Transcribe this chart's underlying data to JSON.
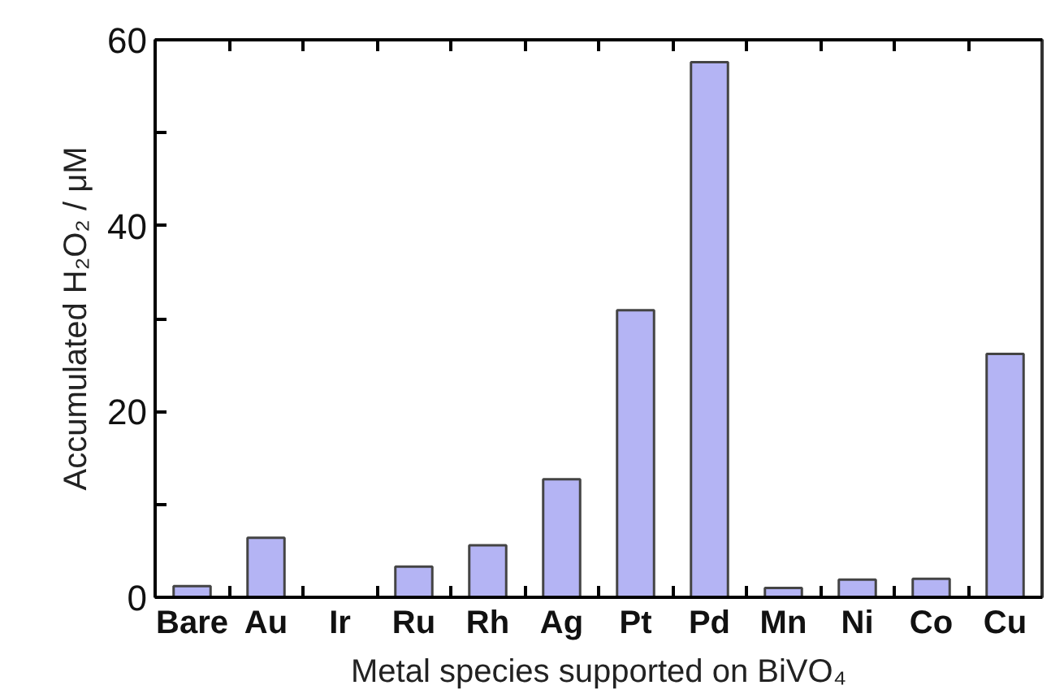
{
  "chart_data": {
    "type": "bar",
    "xlabel": "Metal species supported on BiVO₄",
    "ylabel": "Accumulated H₂O₂ / μM",
    "categories": [
      "Bare",
      "Au",
      "Ir",
      "Ru",
      "Rh",
      "Ag",
      "Pt",
      "Pd",
      "Mn",
      "Ni",
      "Co",
      "Cu"
    ],
    "values": [
      1.2,
      6.4,
      null,
      3.3,
      5.6,
      12.7,
      30.9,
      57.6,
      1.0,
      1.9,
      2.0,
      26.2
    ],
    "color": "#b4b4f4",
    "ylim": [
      0,
      60
    ],
    "yticks": [
      0,
      {
        "value": 10,
        "label": null
      },
      20,
      {
        "value": 30,
        "label": null
      },
      40,
      {
        "value": 50,
        "label": null
      },
      60
    ],
    "grid": false
  }
}
